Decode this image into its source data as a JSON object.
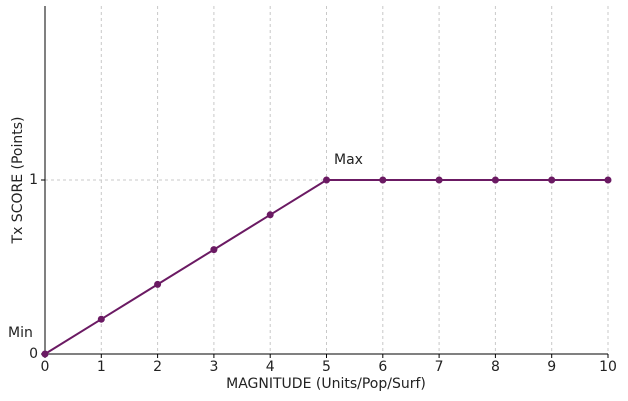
{
  "chart_data": {
    "type": "line",
    "x": [
      0,
      1,
      2,
      3,
      4,
      5,
      6,
      7,
      8,
      9,
      10
    ],
    "series": [
      {
        "color": "#6b1a63",
        "values": [
          0,
          0.2,
          0.4,
          0.6,
          0.8,
          1,
          1,
          1,
          1,
          1,
          1
        ]
      }
    ],
    "xlabel": "MAGNITUDE (Units/Pop/Surf)",
    "ylabel": "Tx SCORE (Points)",
    "xlim": [
      0,
      10
    ],
    "xticks": [
      0,
      1,
      2,
      3,
      4,
      5,
      6,
      7,
      8,
      9,
      10
    ],
    "ylim": [
      0,
      2
    ],
    "yticks": [
      0,
      1
    ],
    "grid": true,
    "annotations": [
      "Min",
      "Max"
    ]
  }
}
